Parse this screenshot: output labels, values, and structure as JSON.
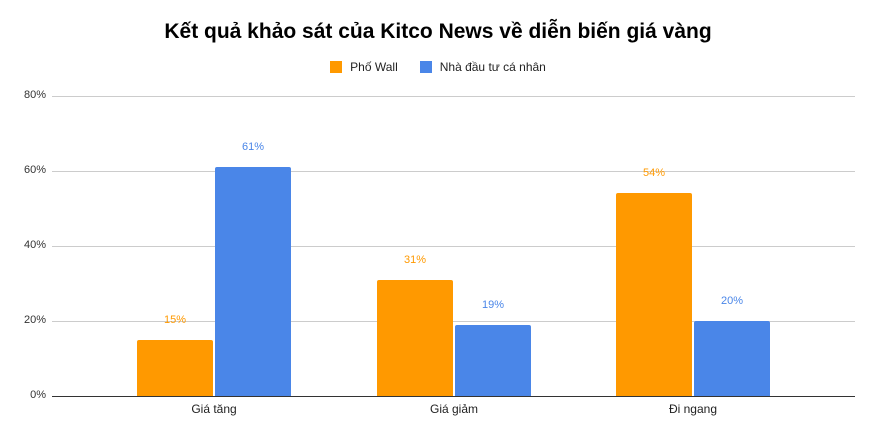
{
  "chart_data": {
    "type": "bar",
    "title": "Kết quả khảo sát của Kitco News về diễn biến giá vàng",
    "categories": [
      "Giá tăng",
      "Giá giảm",
      "Đi ngang"
    ],
    "series": [
      {
        "name": "Phố Wall",
        "color": "#ff9900",
        "values": [
          15,
          31,
          54
        ],
        "labels": [
          "15%",
          "31%",
          "54%"
        ]
      },
      {
        "name": "Nhà đầu tư cá nhân",
        "color": "#4a86e8",
        "values": [
          61,
          19,
          20
        ],
        "labels": [
          "61%",
          "19%",
          "20%"
        ]
      }
    ],
    "xlabel": "",
    "ylabel": "",
    "ylim": [
      0,
      80
    ],
    "yticks": [
      "0%",
      "20%",
      "40%",
      "60%",
      "80%"
    ],
    "grid": true,
    "legend_position": "top"
  }
}
